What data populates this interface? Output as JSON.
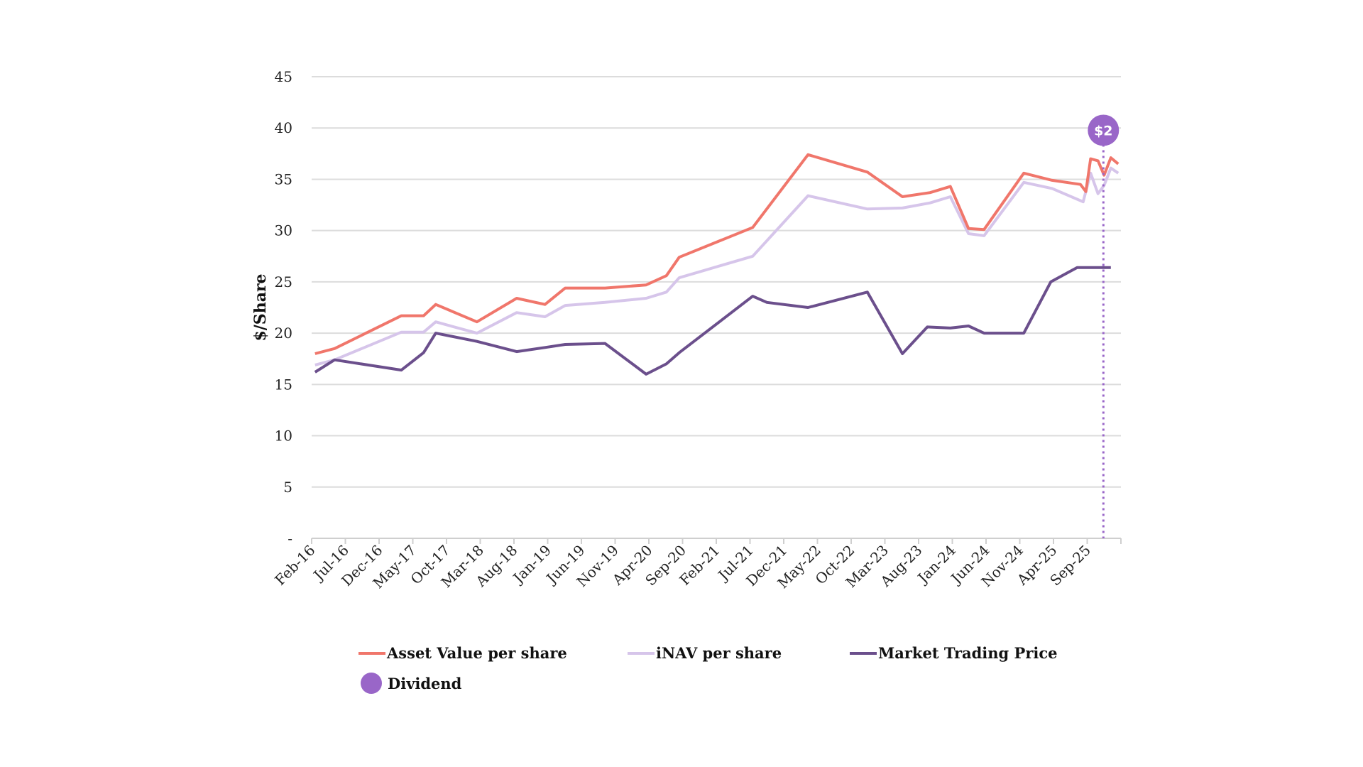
{
  "chart_data": {
    "type": "line",
    "title": "",
    "ylabel": "$/Share",
    "xlabel": "",
    "ylim": [
      0,
      45
    ],
    "yticks": [
      0,
      5,
      10,
      15,
      20,
      25,
      30,
      35,
      40,
      45
    ],
    "ytick_labels": [
      "-",
      "5",
      "10",
      "15",
      "20",
      "25",
      "30",
      "35",
      "40",
      "45"
    ],
    "x_unit": "months since Feb-16",
    "xlim": [
      0,
      120
    ],
    "xtick_step_months": 5,
    "xtick_labels": [
      "Feb-16",
      "Jul-16",
      "Dec-16",
      "May-17",
      "Oct-17",
      "Mar-18",
      "Aug-18",
      "Jan-19",
      "Jun-19",
      "Nov-19",
      "Apr-20",
      "Sep-20",
      "Feb-21",
      "Jul-21",
      "Dec-21",
      "May-22",
      "Oct-22",
      "Mar-23",
      "Aug-23",
      "Jan-24",
      "Jun-24",
      "Nov-24",
      "Apr-25",
      "Sep-25"
    ],
    "grid": true,
    "legend_position": "bottom",
    "series": [
      {
        "name": "Asset Value per share",
        "color": "#f0766b",
        "points": [
          [
            0.5,
            18.0
          ],
          [
            3.4,
            18.5
          ],
          [
            13.3,
            21.7
          ],
          [
            16.6,
            21.7
          ],
          [
            18.4,
            22.8
          ],
          [
            24.5,
            21.1
          ],
          [
            30.4,
            23.4
          ],
          [
            34.6,
            22.8
          ],
          [
            37.6,
            24.4
          ],
          [
            43.5,
            24.4
          ],
          [
            49.6,
            24.7
          ],
          [
            52.6,
            25.6
          ],
          [
            54.5,
            27.4
          ],
          [
            65.4,
            30.3
          ],
          [
            73.6,
            37.4
          ],
          [
            82.4,
            35.7
          ],
          [
            87.6,
            33.3
          ],
          [
            91.7,
            33.7
          ],
          [
            94.7,
            34.3
          ],
          [
            97.4,
            30.2
          ],
          [
            99.7,
            30.1
          ],
          [
            105.6,
            35.6
          ],
          [
            109.8,
            34.9
          ],
          [
            114.0,
            34.5
          ],
          [
            114.8,
            33.8
          ],
          [
            115.5,
            37.0
          ],
          [
            116.6,
            36.8
          ],
          [
            117.5,
            35.4
          ],
          [
            118.5,
            37.1
          ],
          [
            119.6,
            36.5
          ]
        ]
      },
      {
        "name": "iNAV per share",
        "color": "#d6c5ea",
        "points": [
          [
            0.5,
            16.9
          ],
          [
            3.4,
            17.4
          ],
          [
            13.3,
            20.1
          ],
          [
            16.6,
            20.1
          ],
          [
            18.4,
            21.1
          ],
          [
            24.5,
            20.0
          ],
          [
            30.4,
            22.0
          ],
          [
            34.6,
            21.6
          ],
          [
            37.6,
            22.7
          ],
          [
            43.5,
            23.0
          ],
          [
            49.6,
            23.4
          ],
          [
            52.6,
            24.0
          ],
          [
            54.5,
            25.4
          ],
          [
            65.4,
            27.5
          ],
          [
            73.6,
            33.4
          ],
          [
            82.4,
            32.1
          ],
          [
            87.6,
            32.2
          ],
          [
            91.7,
            32.7
          ],
          [
            94.7,
            33.3
          ],
          [
            97.4,
            29.7
          ],
          [
            99.7,
            29.5
          ],
          [
            105.6,
            34.7
          ],
          [
            109.8,
            34.1
          ],
          [
            114.4,
            32.8
          ],
          [
            115.5,
            35.6
          ],
          [
            116.6,
            33.6
          ],
          [
            117.5,
            34.4
          ],
          [
            118.5,
            36.1
          ],
          [
            119.6,
            35.6
          ]
        ]
      },
      {
        "name": "Market Trading Price",
        "color": "#6b4f8c",
        "points": [
          [
            0.5,
            16.2
          ],
          [
            3.4,
            17.4
          ],
          [
            13.3,
            16.4
          ],
          [
            16.6,
            18.1
          ],
          [
            18.4,
            20.0
          ],
          [
            24.5,
            19.2
          ],
          [
            30.4,
            18.2
          ],
          [
            34.6,
            18.6
          ],
          [
            37.6,
            18.9
          ],
          [
            43.5,
            19.0
          ],
          [
            49.6,
            16.0
          ],
          [
            52.6,
            17.0
          ],
          [
            54.5,
            18.1
          ],
          [
            65.4,
            23.6
          ],
          [
            67.5,
            23.0
          ],
          [
            73.6,
            22.5
          ],
          [
            82.4,
            24.0
          ],
          [
            87.6,
            18.0
          ],
          [
            91.3,
            20.6
          ],
          [
            94.7,
            20.5
          ],
          [
            97.4,
            20.7
          ],
          [
            99.7,
            20.0
          ],
          [
            105.6,
            20.0
          ],
          [
            109.6,
            25.0
          ],
          [
            113.5,
            26.4
          ],
          [
            118.5,
            26.4
          ]
        ]
      }
    ],
    "annotations": [
      {
        "type": "dividend",
        "name": "Dividend",
        "x": 117.4,
        "label": "$2",
        "color": "#9966c8"
      }
    ]
  }
}
